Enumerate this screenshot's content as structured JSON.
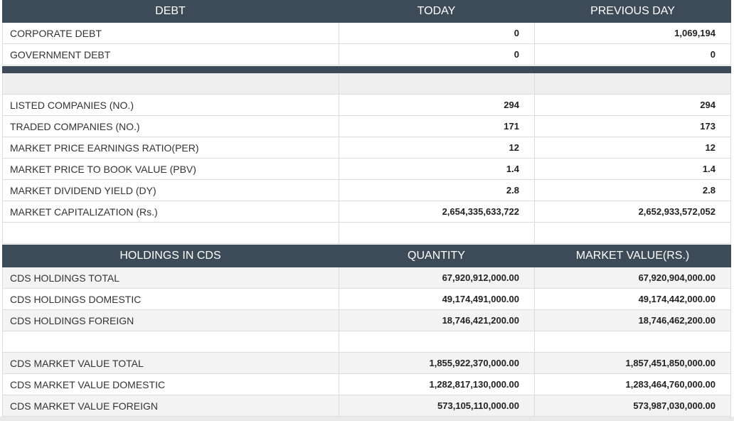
{
  "debt_table": {
    "headers": [
      "DEBT",
      "TODAY",
      "PREVIOUS DAY"
    ],
    "rows": [
      {
        "label": "CORPORATE DEBT",
        "today": "0",
        "previous": "1,069,194"
      },
      {
        "label": "GOVERNMENT DEBT",
        "today": "0",
        "previous": "0"
      }
    ]
  },
  "market_table": {
    "rows": [
      {
        "label": "",
        "today": "",
        "previous": ""
      },
      {
        "label": "LISTED COMPANIES (NO.)",
        "today": "294",
        "previous": "294"
      },
      {
        "label": "TRADED COMPANIES (NO.)",
        "today": "171",
        "previous": "173"
      },
      {
        "label": "MARKET PRICE EARNINGS RATIO(PER)",
        "today": "12",
        "previous": "12"
      },
      {
        "label": "MARKET PRICE TO BOOK VALUE (PBV)",
        "today": "1.4",
        "previous": "1.4"
      },
      {
        "label": "MARKET DIVIDEND YIELD (DY)",
        "today": "2.8",
        "previous": "2.8"
      },
      {
        "label": "MARKET CAPITALIZATION (Rs.)",
        "today": "2,654,335,633,722",
        "previous": "2,652,933,572,052"
      },
      {
        "label": "",
        "today": "",
        "previous": ""
      }
    ]
  },
  "cds_table": {
    "headers": [
      "HOLDINGS IN CDS",
      "QUANTITY",
      "MARKET VALUE(RS.)"
    ],
    "rows": [
      {
        "label": "CDS HOLDINGS TOTAL",
        "quantity": "67,920,912,000.00",
        "value": "67,920,904,000.00"
      },
      {
        "label": "CDS HOLDINGS DOMESTIC",
        "quantity": "49,174,491,000.00",
        "value": "49,174,442,000.00"
      },
      {
        "label": "CDS HOLDINGS FOREIGN",
        "quantity": "18,746,421,200.00",
        "value": "18,746,462,200.00"
      },
      {
        "label": "",
        "quantity": "",
        "value": ""
      },
      {
        "label": "CDS MARKET VALUE TOTAL",
        "quantity": "1,855,922,370,000.00",
        "value": "1,857,451,850,000.00"
      },
      {
        "label": "CDS MARKET VALUE DOMESTIC",
        "quantity": "1,282,817,130,000.00",
        "value": "1,283,464,760,000.00"
      },
      {
        "label": "CDS MARKET VALUE FOREIGN",
        "quantity": "573,105,110,000.00",
        "value": "573,987,030,000.00"
      }
    ]
  },
  "colors": {
    "header_bg": "#3d4a57",
    "header_text": "#ffffff",
    "row_alt_bg": "#f3f3f3",
    "border": "#dcdcdc"
  }
}
